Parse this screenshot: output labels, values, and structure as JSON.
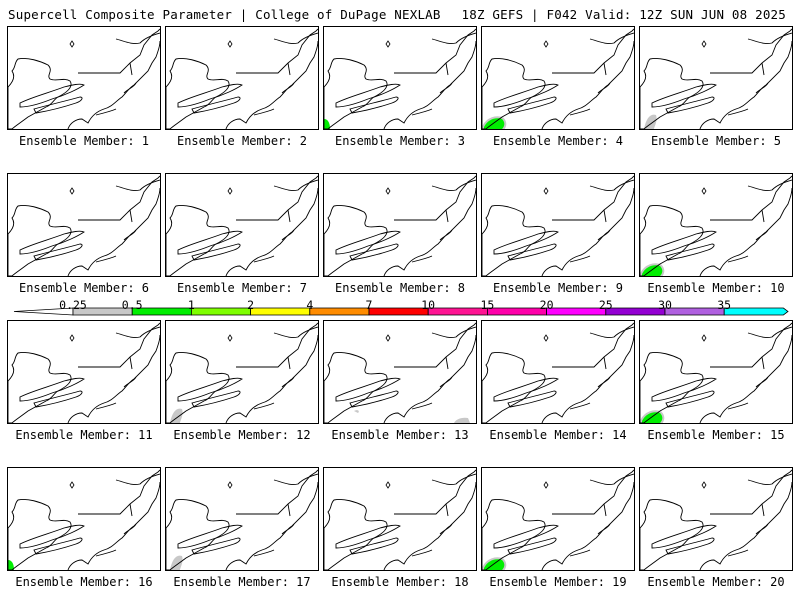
{
  "header": {
    "title": "Supercell Composite Parameter | College of DuPage NEXLAB",
    "run_info": "18Z GEFS | F042 Valid: 12Z SUN JUN 08 2025"
  },
  "legend": {
    "labels": [
      "0.25",
      "0.5",
      "1",
      "2",
      "4",
      "7",
      "10",
      "15",
      "20",
      "25",
      "30",
      "35"
    ],
    "colors": [
      "#c8c8c8",
      "#00ee00",
      "#7fff00",
      "#ffff00",
      "#ff8c00",
      "#ff0000",
      "#ff1493",
      "#ff00aa",
      "#ff00ff",
      "#9400d3",
      "#b060e0",
      "#00ffff"
    ],
    "left_arrow_color": "#ffffff"
  },
  "panels": [
    {
      "caption": "Ensemble Member: 1",
      "scp_coverage": "none"
    },
    {
      "caption": "Ensemble Member: 2",
      "scp_coverage": "none"
    },
    {
      "caption": "Ensemble Member: 3",
      "scp_coverage": "green, bottom-left corner"
    },
    {
      "caption": "Ensemble Member: 4",
      "scp_coverage": "green, bottom-left"
    },
    {
      "caption": "Ensemble Member: 5",
      "scp_coverage": "gray, bottom-left"
    },
    {
      "caption": "Ensemble Member: 6",
      "scp_coverage": "none"
    },
    {
      "caption": "Ensemble Member: 7",
      "scp_coverage": "none"
    },
    {
      "caption": "Ensemble Member: 8",
      "scp_coverage": "none"
    },
    {
      "caption": "Ensemble Member: 9",
      "scp_coverage": "none"
    },
    {
      "caption": "Ensemble Member: 10",
      "scp_coverage": "green, bottom-left"
    },
    {
      "caption": "Ensemble Member: 11",
      "scp_coverage": "none"
    },
    {
      "caption": "Ensemble Member: 12",
      "scp_coverage": "gray, bottom-left"
    },
    {
      "caption": "Ensemble Member: 13",
      "scp_coverage": "gray, bottom"
    },
    {
      "caption": "Ensemble Member: 14",
      "scp_coverage": "none"
    },
    {
      "caption": "Ensemble Member: 15",
      "scp_coverage": "green, bottom-left"
    },
    {
      "caption": "Ensemble Member: 16",
      "scp_coverage": "green, bottom-left corner"
    },
    {
      "caption": "Ensemble Member: 17",
      "scp_coverage": "gray, bottom-left"
    },
    {
      "caption": "Ensemble Member: 18",
      "scp_coverage": "none"
    },
    {
      "caption": "Ensemble Member: 19",
      "scp_coverage": "green, bottom-left"
    },
    {
      "caption": "Ensemble Member: 20",
      "scp_coverage": "none"
    }
  ]
}
